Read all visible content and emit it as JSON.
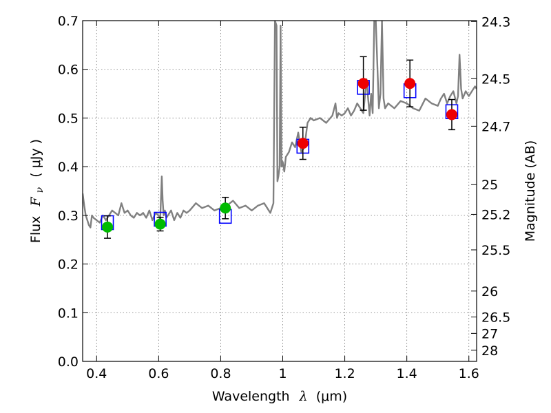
{
  "chart_data": {
    "type": "scatter",
    "xlabel_text": "Wavelength",
    "xlabel_symbol": "λ",
    "xlabel_unit": "(μm)",
    "ylabel_text": "Flux",
    "ylabel_symbol": "F",
    "ylabel_symbol_sub": "ν",
    "ylabel_unit": "( μJy )",
    "ylabel_right": "Magnitude (AB)",
    "xlim": [
      0.355,
      1.625
    ],
    "ylim": [
      0.0,
      0.7
    ],
    "grid": true,
    "x_ticks": [
      {
        "value": 0.4,
        "label": "0.4"
      },
      {
        "value": 0.6,
        "label": "0.6"
      },
      {
        "value": 0.8,
        "label": "0.8"
      },
      {
        "value": 1.0,
        "label": "1"
      },
      {
        "value": 1.2,
        "label": "1.2"
      },
      {
        "value": 1.4,
        "label": "1.4"
      },
      {
        "value": 1.6,
        "label": "1.6"
      }
    ],
    "y_ticks": [
      {
        "value": 0.0,
        "label": "0.0"
      },
      {
        "value": 0.1,
        "label": "0.1"
      },
      {
        "value": 0.2,
        "label": "0.2"
      },
      {
        "value": 0.3,
        "label": "0.3"
      },
      {
        "value": 0.4,
        "label": "0.4"
      },
      {
        "value": 0.5,
        "label": "0.5"
      },
      {
        "value": 0.6,
        "label": "0.6"
      },
      {
        "value": 0.7,
        "label": "0.7"
      }
    ],
    "right_ticks": [
      {
        "flux": 0.6982,
        "label": "24.3"
      },
      {
        "flux": 0.5808,
        "label": "24.5"
      },
      {
        "flux": 0.4831,
        "label": "24.7"
      },
      {
        "flux": 0.3631,
        "label": "25"
      },
      {
        "flux": 0.302,
        "label": "25.2"
      },
      {
        "flux": 0.2291,
        "label": "25.5"
      },
      {
        "flux": 0.1445,
        "label": "26"
      },
      {
        "flux": 0.0912,
        "label": "26.5"
      },
      {
        "flux": 0.0575,
        "label": "27"
      },
      {
        "flux": 0.0229,
        "label": "28"
      }
    ],
    "colors": {
      "spectrum": "#808080",
      "model": "#0000ff",
      "green": "#00bb00",
      "red": "#ee0000",
      "errorbar": "#000000"
    },
    "spectrum": {
      "x": [
        0.355,
        0.36,
        0.365,
        0.37,
        0.375,
        0.38,
        0.385,
        0.39,
        0.4,
        0.41,
        0.42,
        0.43,
        0.44,
        0.45,
        0.46,
        0.47,
        0.48,
        0.49,
        0.5,
        0.51,
        0.52,
        0.53,
        0.54,
        0.55,
        0.56,
        0.57,
        0.58,
        0.59,
        0.6,
        0.605,
        0.61,
        0.613,
        0.616,
        0.62,
        0.625,
        0.63,
        0.64,
        0.65,
        0.66,
        0.67,
        0.68,
        0.69,
        0.7,
        0.72,
        0.74,
        0.76,
        0.78,
        0.8,
        0.82,
        0.84,
        0.86,
        0.88,
        0.9,
        0.92,
        0.94,
        0.96,
        0.97,
        0.975,
        0.98,
        0.983,
        0.986,
        0.99,
        0.993,
        0.996,
        1.0,
        1.005,
        1.01,
        1.02,
        1.03,
        1.04,
        1.05,
        1.06,
        1.07,
        1.08,
        1.09,
        1.1,
        1.12,
        1.14,
        1.16,
        1.17,
        1.175,
        1.18,
        1.19,
        1.2,
        1.21,
        1.22,
        1.23,
        1.24,
        1.25,
        1.26,
        1.27,
        1.28,
        1.285,
        1.29,
        1.295,
        1.3,
        1.31,
        1.315,
        1.32,
        1.325,
        1.33,
        1.34,
        1.36,
        1.38,
        1.4,
        1.42,
        1.44,
        1.46,
        1.48,
        1.5,
        1.51,
        1.52,
        1.53,
        1.54,
        1.55,
        1.56,
        1.565,
        1.57,
        1.575,
        1.58,
        1.59,
        1.6,
        1.61,
        1.62,
        1.625
      ],
      "y": [
        0.345,
        0.32,
        0.3,
        0.29,
        0.28,
        0.275,
        0.3,
        0.295,
        0.29,
        0.285,
        0.3,
        0.29,
        0.3,
        0.31,
        0.305,
        0.3,
        0.325,
        0.305,
        0.31,
        0.3,
        0.295,
        0.305,
        0.3,
        0.305,
        0.295,
        0.31,
        0.29,
        0.305,
        0.3,
        0.29,
        0.38,
        0.33,
        0.3,
        0.31,
        0.295,
        0.3,
        0.31,
        0.29,
        0.305,
        0.295,
        0.31,
        0.305,
        0.31,
        0.325,
        0.315,
        0.32,
        0.31,
        0.315,
        0.32,
        0.33,
        0.315,
        0.32,
        0.31,
        0.32,
        0.325,
        0.305,
        0.325,
        0.7,
        0.69,
        0.37,
        0.38,
        0.4,
        0.69,
        0.4,
        0.41,
        0.39,
        0.42,
        0.43,
        0.45,
        0.44,
        0.47,
        0.43,
        0.44,
        0.49,
        0.5,
        0.495,
        0.5,
        0.49,
        0.505,
        0.53,
        0.5,
        0.51,
        0.505,
        0.51,
        0.52,
        0.505,
        0.515,
        0.53,
        0.52,
        0.51,
        0.58,
        0.505,
        0.55,
        0.51,
        0.7,
        0.7,
        0.52,
        0.55,
        0.7,
        0.54,
        0.52,
        0.53,
        0.52,
        0.535,
        0.53,
        0.52,
        0.515,
        0.54,
        0.53,
        0.525,
        0.54,
        0.55,
        0.53,
        0.545,
        0.555,
        0.53,
        0.545,
        0.63,
        0.56,
        0.54,
        0.555,
        0.545,
        0.555,
        0.565,
        0.56
      ]
    },
    "model_points": {
      "x": [
        0.435,
        0.605,
        0.815,
        1.065,
        1.26,
        1.41,
        1.545
      ],
      "y": [
        0.285,
        0.292,
        0.298,
        0.442,
        0.563,
        0.556,
        0.513
      ]
    },
    "observed_green": {
      "x": [
        0.435,
        0.605,
        0.815
      ],
      "y": [
        0.276,
        0.282,
        0.315
      ],
      "err": [
        0.023,
        0.014,
        0.022
      ]
    },
    "observed_red": {
      "x": [
        1.065,
        1.26,
        1.41,
        1.545
      ],
      "y": [
        0.448,
        0.571,
        0.571,
        0.507
      ],
      "err": [
        0.033,
        0.055,
        0.048,
        0.031
      ]
    }
  }
}
